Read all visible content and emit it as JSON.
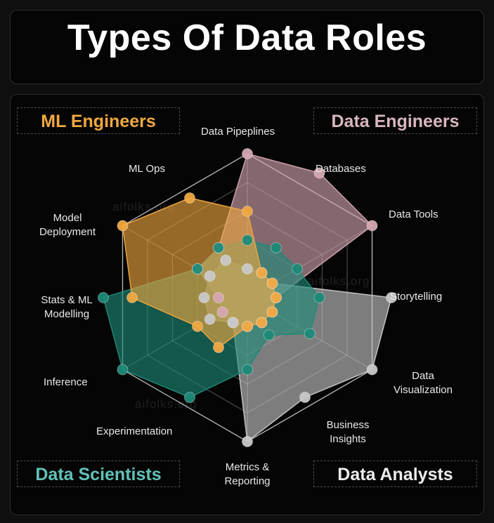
{
  "title": "Types Of Data Roles",
  "watermark": "aifolks.org",
  "roles": {
    "ml_engineers": "ML Engineers",
    "data_engineers": "Data Engineers",
    "data_scientists": "Data Scientists",
    "data_analysts": "Data Analysts"
  },
  "axes": [
    "Data Pipeplines",
    "Databases",
    "Data Tools",
    "Storytelling",
    "Data\nVisualization",
    "Business\nInsights",
    "Metrics &\nReporting",
    "Experimentation",
    "Inference",
    "Stats & ML\nModelling",
    "Model\nDeployment",
    "ML Ops"
  ],
  "chart_data": {
    "type": "radar",
    "levels": 5,
    "series": [
      {
        "name": "Data Engineers",
        "color": "#d4a7b0",
        "values": [
          1.0,
          1.0,
          1.0,
          0.2,
          0.2,
          0.2,
          0.2,
          0.2,
          0.2,
          0.2,
          0.4,
          0.4
        ]
      },
      {
        "name": "Data Analysts",
        "color": "#c8c8c8",
        "values": [
          0.2,
          0.2,
          0.2,
          1.0,
          1.0,
          0.8,
          1.0,
          0.2,
          0.3,
          0.3,
          0.3,
          0.3
        ]
      },
      {
        "name": "Data Scientists",
        "color": "#1e8a78",
        "values": [
          0.4,
          0.4,
          0.4,
          0.5,
          0.5,
          0.3,
          0.5,
          0.8,
          1.0,
          1.0,
          0.4,
          0.4
        ]
      },
      {
        "name": "ML Engineers",
        "color": "#f0a840",
        "values": [
          0.6,
          0.2,
          0.2,
          0.2,
          0.2,
          0.2,
          0.2,
          0.4,
          0.4,
          0.8,
          1.0,
          0.8
        ]
      }
    ]
  }
}
